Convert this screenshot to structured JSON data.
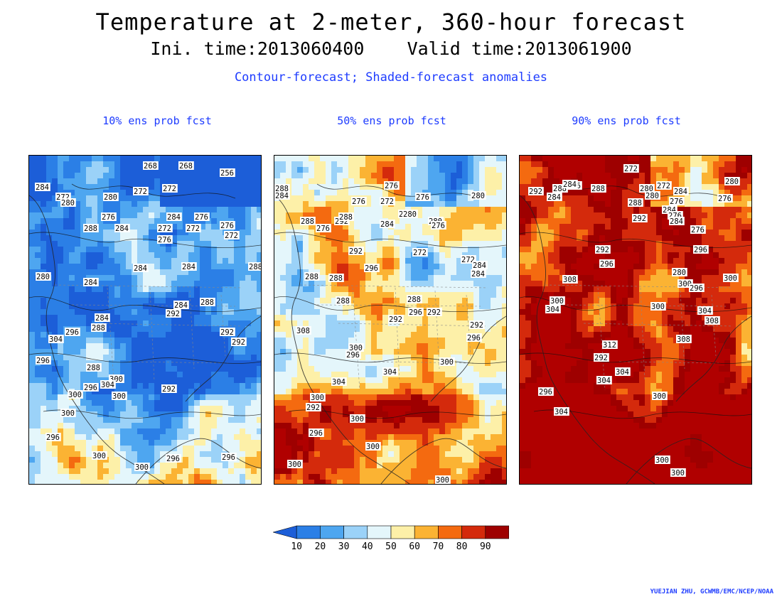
{
  "title": "Temperature at 2-meter, 360-hour forecast",
  "subtitle": "Ini. time:2013060400    Valid time:2013061900",
  "description_line": "Contour-forecast; Shaded-forecast anomalies",
  "panels": [
    {
      "title": "10% ens prob fcst",
      "warmth": 0.15,
      "contour_labels": [
        "268",
        "268",
        "256",
        "284",
        "272",
        "272",
        "272",
        "280",
        "280",
        "284",
        "276",
        "276",
        "284",
        "288",
        "272",
        "272",
        "276",
        "276",
        "272",
        "284",
        "288",
        "284",
        "280",
        "284",
        "284",
        "288",
        "284",
        "292",
        "288",
        "292",
        "296",
        "304",
        "292",
        "296",
        "288",
        "300",
        "304",
        "296",
        "300",
        "300",
        "292",
        "300",
        "296",
        "300",
        "296",
        "296",
        "300"
      ]
    },
    {
      "title": "50% ens prob fcst",
      "warmth": 0.5,
      "contour_labels": [
        "276",
        "288",
        "284",
        "276",
        "272",
        "276",
        "280",
        "288",
        "292",
        "288",
        "280",
        "284",
        "272",
        "280",
        "276",
        "280",
        "276",
        "292",
        "272",
        "296",
        "284",
        "288",
        "284",
        "288",
        "288",
        "292",
        "288",
        "296",
        "292",
        "308",
        "292",
        "296",
        "304",
        "296",
        "300",
        "300",
        "304",
        "300",
        "292",
        "300",
        "296",
        "300",
        "300",
        "300"
      ]
    },
    {
      "title": "90% ens prob fcst",
      "warmth": 0.86,
      "contour_labels": [
        "292",
        "272",
        "280",
        "288",
        "296",
        "288",
        "284",
        "284",
        "280",
        "272",
        "284",
        "276",
        "280",
        "276",
        "288",
        "284",
        "276",
        "284",
        "292",
        "276",
        "296",
        "280",
        "300",
        "292",
        "296",
        "308",
        "300",
        "296",
        "300",
        "304",
        "300",
        "304",
        "308",
        "312",
        "304",
        "292",
        "308",
        "304",
        "300",
        "296",
        "304",
        "300",
        "300"
      ]
    }
  ],
  "colorbar": {
    "labels": [
      "10",
      "20",
      "30",
      "40",
      "50",
      "60",
      "70",
      "80",
      "90"
    ],
    "colors": [
      "#1c5ed8",
      "#2b7fe6",
      "#4ea6f0",
      "#9bd2f8",
      "#e4f6fb",
      "#fdf0a8",
      "#fbb333",
      "#f46a10",
      "#d42a0c",
      "#9e0000",
      "#b00000"
    ]
  },
  "credit": "YUEJIAN ZHU, GCWMB/EMC/NCEP/NOAA"
}
